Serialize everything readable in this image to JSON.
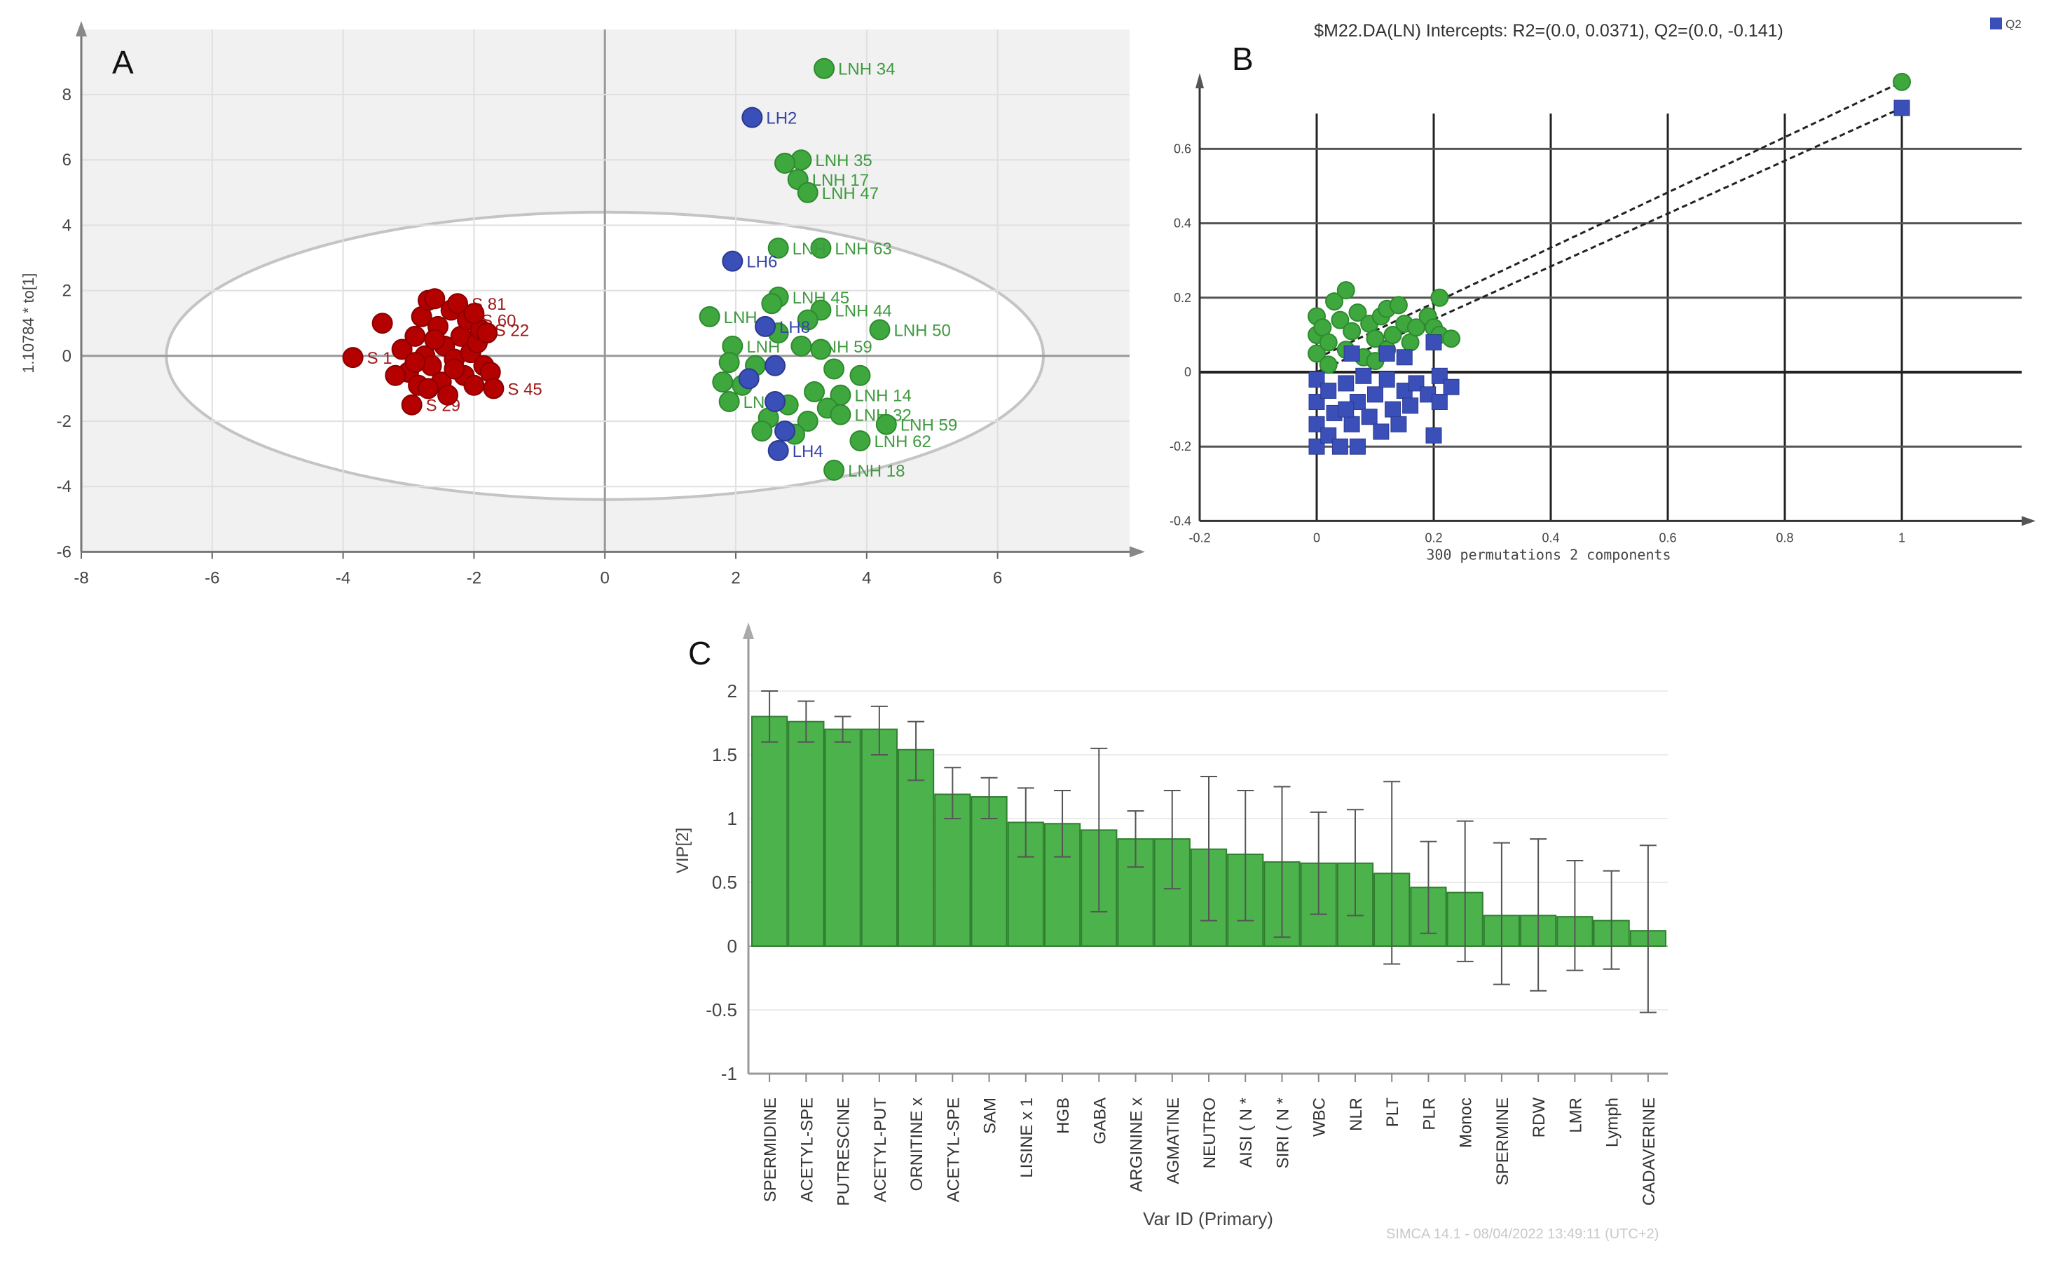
{
  "chart_data": [
    {
      "panel": "A",
      "type": "scatter",
      "title": "",
      "xlabel": "",
      "ylabel": "1.10784 * to[1]",
      "xlim": [
        -8,
        8
      ],
      "ylim": [
        -6,
        9.5
      ],
      "xticks": [
        -8,
        -6,
        -4,
        -2,
        0,
        2,
        4,
        6
      ],
      "yticks": [
        -6,
        -4,
        -2,
        0,
        2,
        4,
        6,
        8
      ],
      "grid": true,
      "ellipse": {
        "rx": 6.7,
        "ry": 4.4
      },
      "colors": {
        "S": "#b50000",
        "LNH": "#3ea83e",
        "LH": "#3a4fb8"
      },
      "series": [
        {
          "name": "S",
          "color": "#b50000",
          "points": [
            [
              -3.85,
              -0.05,
              "S 1"
            ],
            [
              -3.4,
              1.0,
              ""
            ],
            [
              -3.1,
              0.2,
              ""
            ],
            [
              -3.0,
              -0.5,
              ""
            ],
            [
              -2.95,
              -1.5,
              "S 29"
            ],
            [
              -2.9,
              0.6,
              ""
            ],
            [
              -2.85,
              -0.9,
              ""
            ],
            [
              -2.8,
              1.2,
              ""
            ],
            [
              -2.75,
              0.0,
              ""
            ],
            [
              -2.7,
              1.7,
              ""
            ],
            [
              -2.65,
              -0.3,
              ""
            ],
            [
              -2.6,
              1.75,
              ""
            ],
            [
              -2.55,
              0.9,
              ""
            ],
            [
              -2.5,
              -0.8,
              ""
            ],
            [
              -2.45,
              0.3,
              ""
            ],
            [
              -2.4,
              -1.2,
              ""
            ],
            [
              -2.35,
              1.4,
              ""
            ],
            [
              -2.3,
              -0.1,
              ""
            ],
            [
              -2.25,
              1.6,
              "S 81"
            ],
            [
              -2.2,
              0.6,
              ""
            ],
            [
              -2.15,
              -0.6,
              ""
            ],
            [
              -2.1,
              1.1,
              "S 60"
            ],
            [
              -2.05,
              0.1,
              ""
            ],
            [
              -2.0,
              -0.9,
              ""
            ],
            [
              -1.95,
              0.4,
              ""
            ],
            [
              -1.9,
              0.8,
              "S 22"
            ],
            [
              -1.85,
              -0.3,
              ""
            ],
            [
              -1.8,
              0.7,
              ""
            ],
            [
              -1.75,
              -0.5,
              ""
            ],
            [
              -1.7,
              -1.0,
              "S 45"
            ],
            [
              -2.6,
              0.5,
              ""
            ],
            [
              -2.9,
              -0.2,
              ""
            ],
            [
              -2.3,
              -0.4,
              ""
            ],
            [
              -2.0,
              1.3,
              ""
            ],
            [
              -3.2,
              -0.6,
              ""
            ],
            [
              -2.7,
              -1.0,
              ""
            ]
          ]
        },
        {
          "name": "LNH",
          "color": "#3ea83e",
          "points": [
            [
              3.35,
              8.8,
              "LNH 34"
            ],
            [
              3.0,
              6.0,
              "LNH 35"
            ],
            [
              2.75,
              5.9,
              ""
            ],
            [
              2.95,
              5.4,
              "LNH 17"
            ],
            [
              3.1,
              5.0,
              "LNH 47"
            ],
            [
              3.3,
              3.3,
              "LNH 63"
            ],
            [
              2.65,
              3.3,
              "LNH"
            ],
            [
              2.65,
              1.8,
              "LNH 45"
            ],
            [
              2.55,
              1.6,
              ""
            ],
            [
              3.3,
              1.4,
              "LNH 44"
            ],
            [
              1.6,
              1.2,
              "LNH"
            ],
            [
              3.1,
              1.1,
              ""
            ],
            [
              4.2,
              0.8,
              "LNH 50"
            ],
            [
              2.65,
              0.7,
              ""
            ],
            [
              1.95,
              0.3,
              "LNH"
            ],
            [
              3.0,
              0.3,
              "LNH 59"
            ],
            [
              3.3,
              0.2,
              ""
            ],
            [
              1.9,
              -0.2,
              ""
            ],
            [
              2.3,
              -0.3,
              ""
            ],
            [
              3.5,
              -0.4,
              ""
            ],
            [
              3.9,
              -0.6,
              ""
            ],
            [
              1.8,
              -0.8,
              ""
            ],
            [
              2.1,
              -0.9,
              ""
            ],
            [
              3.2,
              -1.1,
              ""
            ],
            [
              3.6,
              -1.2,
              "LNH 14"
            ],
            [
              1.9,
              -1.4,
              "LNH"
            ],
            [
              2.8,
              -1.5,
              ""
            ],
            [
              3.4,
              -1.6,
              ""
            ],
            [
              3.6,
              -1.8,
              "LNH 32"
            ],
            [
              2.5,
              -1.9,
              ""
            ],
            [
              3.1,
              -2.0,
              ""
            ],
            [
              4.3,
              -2.1,
              "LNH 59"
            ],
            [
              2.4,
              -2.3,
              ""
            ],
            [
              2.9,
              -2.4,
              ""
            ],
            [
              3.9,
              -2.6,
              "LNH 62"
            ],
            [
              3.5,
              -3.5,
              "LNH 18"
            ]
          ]
        },
        {
          "name": "LH",
          "color": "#3a4fb8",
          "points": [
            [
              2.25,
              7.3,
              "LH2"
            ],
            [
              1.95,
              2.9,
              "LH6"
            ],
            [
              2.45,
              0.9,
              "LH8"
            ],
            [
              2.6,
              -0.3,
              ""
            ],
            [
              2.2,
              -0.7,
              ""
            ],
            [
              2.6,
              -1.4,
              ""
            ],
            [
              2.75,
              -2.3,
              ""
            ],
            [
              2.65,
              -2.9,
              "LH4"
            ]
          ]
        }
      ]
    },
    {
      "panel": "B",
      "type": "scatter",
      "title": "$M22.DA(LN) Intercepts: R2=(0.0, 0.0371), Q2=(0.0, -0.141)",
      "xlabel": "300 permutations 2 components",
      "ylabel": "",
      "xlim": [
        -0.2,
        1.2
      ],
      "ylim": [
        -0.4,
        0.8
      ],
      "xticks": [
        "-0.2",
        "0",
        "0.2",
        "0.4",
        "0.6",
        "0.8",
        "1"
      ],
      "yticks": [
        "-0.4",
        "-0.2",
        "0",
        "0.2",
        "0.4",
        "0.6"
      ],
      "grid": true,
      "legend": {
        "position": "top-right",
        "entries": [
          "Q2"
        ]
      },
      "intercepts": {
        "R2": [
          0.0,
          0.0371
        ],
        "Q2": [
          0.0,
          -0.141
        ]
      },
      "series": [
        {
          "name": "R2",
          "color": "#3ea83e",
          "original": [
            1.0,
            0.78
          ],
          "points": [
            [
              0,
              0.15
            ],
            [
              0,
              0.1
            ],
            [
              0,
              0.05
            ],
            [
              0.01,
              0.12
            ],
            [
              0.02,
              0.08
            ],
            [
              0.03,
              0.19
            ],
            [
              0.04,
              0.14
            ],
            [
              0.05,
              0.22
            ],
            [
              0.05,
              0.06
            ],
            [
              0.06,
              0.11
            ],
            [
              0.07,
              0.16
            ],
            [
              0.08,
              0.04
            ],
            [
              0.09,
              0.13
            ],
            [
              0.1,
              0.09
            ],
            [
              0.11,
              0.15
            ],
            [
              0.12,
              0.17
            ],
            [
              0.12,
              0.06
            ],
            [
              0.13,
              0.1
            ],
            [
              0.14,
              0.18
            ],
            [
              0.15,
              0.13
            ],
            [
              0.16,
              0.08
            ],
            [
              0.17,
              0.12
            ],
            [
              0.19,
              0.15
            ],
            [
              0.2,
              0.12
            ],
            [
              0.21,
              0.2
            ],
            [
              0.21,
              0.1
            ],
            [
              0.23,
              0.09
            ],
            [
              0.02,
              0.02
            ],
            [
              0.1,
              0.03
            ]
          ]
        },
        {
          "name": "Q2",
          "color": "#3a4fb8",
          "original": [
            1.0,
            0.71
          ],
          "points": [
            [
              0,
              -0.02
            ],
            [
              0,
              -0.08
            ],
            [
              0,
              -0.14
            ],
            [
              0,
              -0.2
            ],
            [
              0.02,
              -0.05
            ],
            [
              0.02,
              -0.17
            ],
            [
              0.03,
              -0.11
            ],
            [
              0.04,
              -0.2
            ],
            [
              0.05,
              -0.03
            ],
            [
              0.06,
              -0.14
            ],
            [
              0.06,
              0.05
            ],
            [
              0.07,
              -0.08
            ],
            [
              0.07,
              -0.2
            ],
            [
              0.08,
              -0.01
            ],
            [
              0.09,
              -0.12
            ],
            [
              0.1,
              -0.06
            ],
            [
              0.11,
              -0.16
            ],
            [
              0.12,
              -0.02
            ],
            [
              0.12,
              0.05
            ],
            [
              0.13,
              -0.1
            ],
            [
              0.14,
              -0.14
            ],
            [
              0.15,
              -0.05
            ],
            [
              0.15,
              0.04
            ],
            [
              0.16,
              -0.09
            ],
            [
              0.17,
              -0.03
            ],
            [
              0.19,
              -0.06
            ],
            [
              0.2,
              0.08
            ],
            [
              0.21,
              -0.01
            ],
            [
              0.21,
              -0.08
            ],
            [
              0.23,
              -0.04
            ],
            [
              0.2,
              -0.17
            ],
            [
              0.05,
              -0.1
            ]
          ]
        }
      ]
    },
    {
      "panel": "C",
      "type": "bar",
      "title": "",
      "xlabel": "Var ID (Primary)",
      "ylabel": "VIP[2]",
      "ylim": [
        -1,
        2.2
      ],
      "yticks": [
        "-1",
        "-0.5",
        "0",
        "0.5",
        "1",
        "1.5",
        "2"
      ],
      "grid": true,
      "bar_color": "#4cb34c",
      "categories": [
        "SPERMIDINE",
        "ACETYL-SPE",
        "PUTRESCINE",
        "ACETYL-PUT",
        "ORNITINE x",
        "ACETYL-SPE",
        "SAM",
        "LISINE x 1",
        "HGB",
        "GABA",
        "ARGININE x",
        "AGMATINE",
        "NEUTRO",
        "AISI ( N *",
        "SIRI ( N *",
        "WBC",
        "NLR",
        "PLT",
        "PLR",
        "Monoc",
        "SPERMINE",
        "RDW",
        "LMR",
        "Lymph",
        "CADAVERINE"
      ],
      "values": [
        1.8,
        1.76,
        1.7,
        1.7,
        1.54,
        1.19,
        1.17,
        0.97,
        0.96,
        0.91,
        0.84,
        0.84,
        0.76,
        0.72,
        0.66,
        0.65,
        0.65,
        0.57,
        0.46,
        0.42,
        0.24,
        0.24,
        0.23,
        0.2,
        0.12
      ],
      "error_low": [
        1.6,
        1.6,
        1.6,
        1.5,
        1.3,
        1.0,
        1.0,
        0.7,
        0.7,
        0.27,
        0.62,
        0.45,
        0.2,
        0.2,
        0.07,
        0.25,
        0.24,
        -0.14,
        0.1,
        -0.12,
        -0.3,
        -0.35,
        -0.19,
        -0.18,
        -0.52
      ],
      "error_high": [
        2.0,
        1.92,
        1.8,
        1.88,
        1.76,
        1.4,
        1.32,
        1.24,
        1.22,
        1.55,
        1.06,
        1.22,
        1.33,
        1.22,
        1.25,
        1.05,
        1.07,
        1.29,
        0.82,
        0.98,
        0.81,
        0.84,
        0.67,
        0.59,
        0.79
      ]
    }
  ],
  "labels": {
    "A": "A",
    "B": "B",
    "C": "C"
  },
  "footer": "SIMCA 14.1 - 08/04/2022 13:49:11 (UTC+2)"
}
